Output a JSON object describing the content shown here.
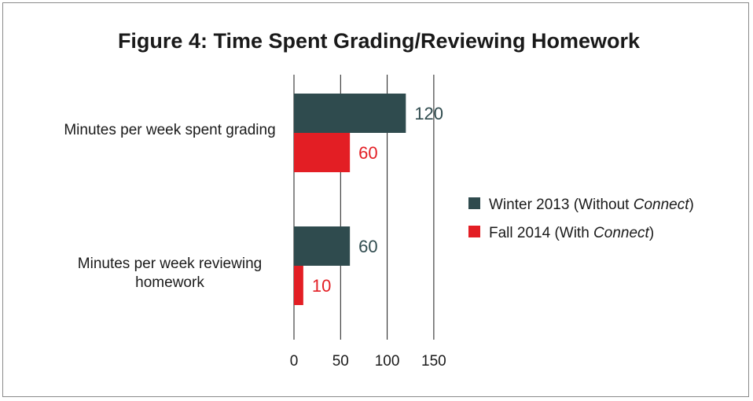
{
  "chart_data": {
    "type": "bar",
    "orientation": "horizontal",
    "title": "Figure 4: Time Spent Grading/Reviewing Homework",
    "categories": [
      [
        "Minutes per week spent grading"
      ],
      [
        "Minutes per week reviewing",
        "homework"
      ]
    ],
    "series": [
      {
        "name_prefix": "Winter 2013 (Without ",
        "name_italic": "Connect",
        "name_suffix": ")",
        "values": [
          120,
          60
        ],
        "data_labels": [
          "120",
          "60"
        ],
        "color": "#2f4b4e",
        "label_color": "#2f4b4e"
      },
      {
        "name_prefix": "Fall 2014 (With ",
        "name_italic": "Connect",
        "name_suffix": ")",
        "values": [
          60,
          10
        ],
        "data_labels": [
          "60",
          "10"
        ],
        "color": "#e31e24",
        "label_color": "#e31e24"
      }
    ],
    "xlim": [
      0,
      150
    ],
    "xticks": [
      "0",
      "50",
      "100",
      "150"
    ],
    "grid": "vertical",
    "legend": "right"
  }
}
